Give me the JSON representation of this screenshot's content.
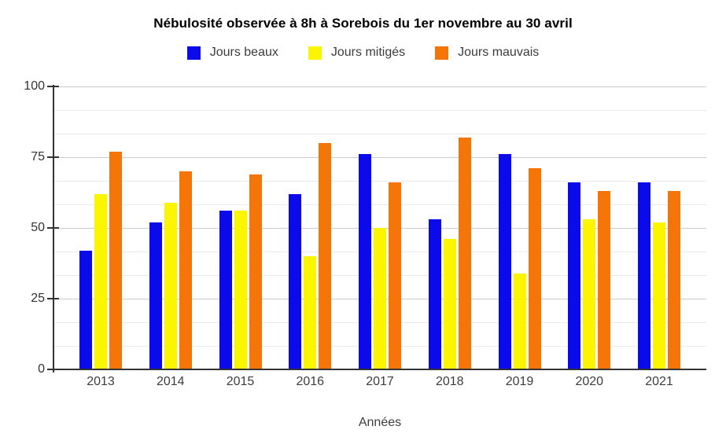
{
  "page": {
    "background": "#ffffff"
  },
  "chart_data": {
    "type": "bar",
    "title": "Nébulosité observée à 8h à Sorebois du 1er novembre au 30 avril",
    "xlabel": "Années",
    "ylabel": "",
    "categories": [
      "2013",
      "2014",
      "2015",
      "2016",
      "2017",
      "2018",
      "2019",
      "2020",
      "2021"
    ],
    "series": [
      {
        "name": "Jours beaux",
        "color": "#0A0AEB",
        "values": [
          42,
          52,
          56,
          62,
          76,
          53,
          76,
          66,
          66
        ]
      },
      {
        "name": "Jours mitigés",
        "color": "#FCF500",
        "values": [
          62,
          59,
          56,
          40,
          50,
          46,
          34,
          53,
          52
        ]
      },
      {
        "name": "Jours mauvais",
        "color": "#F57509",
        "values": [
          77,
          70,
          69,
          80,
          66,
          82,
          71,
          63,
          63
        ]
      }
    ],
    "ylim": [
      0,
      100
    ],
    "yticks": [
      0,
      25,
      50,
      75,
      100
    ],
    "grid": {
      "major_color": "#cccccc",
      "minor_color": "#eaeaea",
      "minor_divisions_per_major": 3
    },
    "axis_color": "#333333",
    "tick_label_color": "#3d3d3d",
    "legend_position": "top"
  }
}
